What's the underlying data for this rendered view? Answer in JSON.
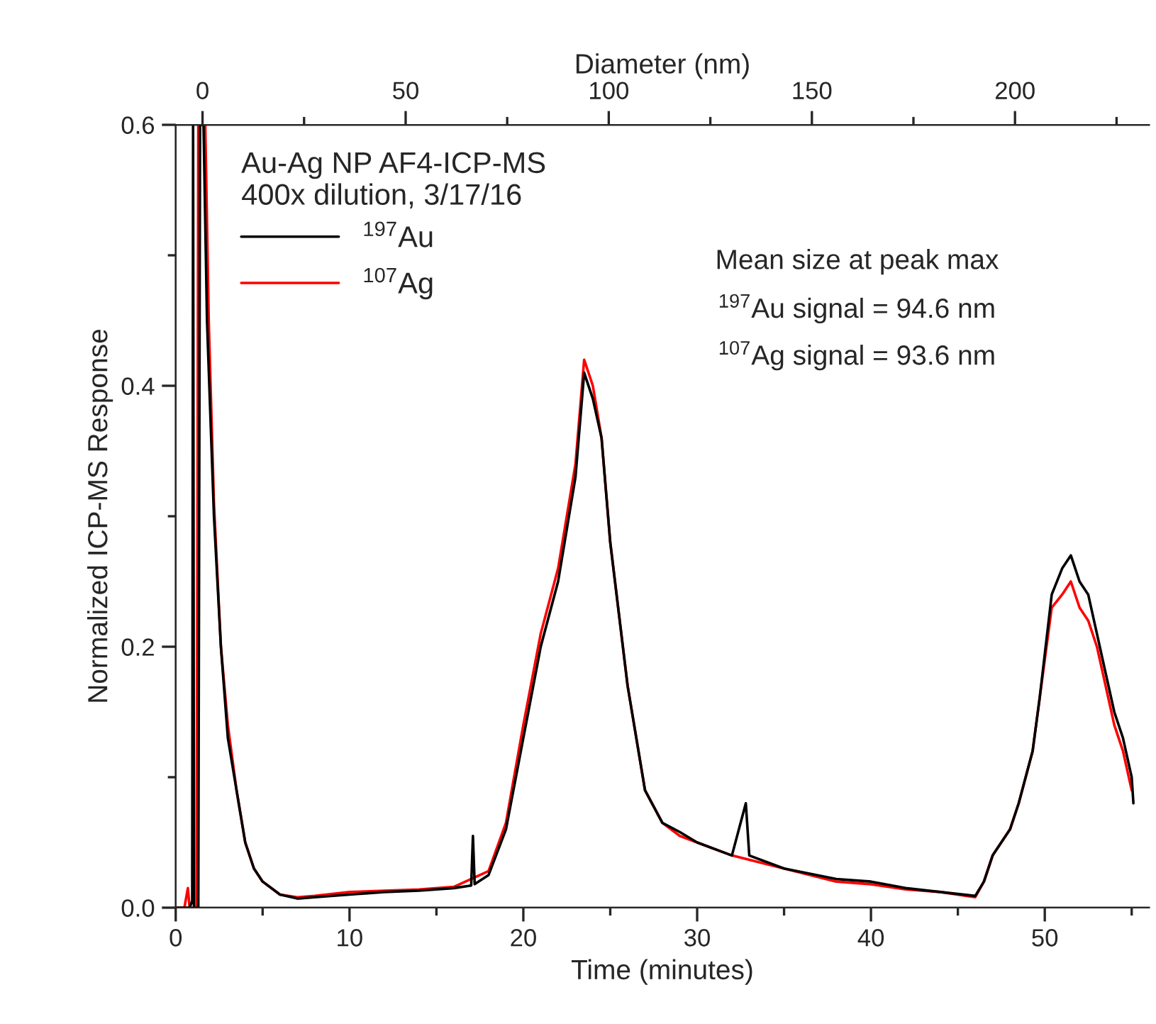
{
  "chart_data": {
    "type": "line",
    "xlabel": "Time (minutes)",
    "ylabel": "Normalized ICP-MS Response",
    "x2label": "Diameter (nm)",
    "legend_title": "Au-Ag NP AF4-ICP-MS\n400x dilution, 3/17/16",
    "annotations": [
      "Mean size at peak max",
      "$^{197}$Au signal = 94.6 nm",
      "$^{107}$Ag signal = 93.6 nm"
    ],
    "xlim": [
      0,
      56
    ],
    "ylim": [
      0,
      0.6
    ],
    "x2lim": [
      -6.6,
      233
    ],
    "xticks": [
      0,
      {
        "value": 5,
        "label": null
      },
      10,
      {
        "value": 15,
        "label": null
      },
      20,
      {
        "value": 25,
        "label": null
      },
      30,
      {
        "value": 35,
        "label": null
      },
      40,
      {
        "value": 45,
        "label": null
      },
      50,
      {
        "value": 55,
        "label": null
      }
    ],
    "yticks": [
      {
        "value": 0,
        "label": "0.0"
      },
      {
        "value": 0.1,
        "label": null
      },
      {
        "value": 0.2,
        "label": "0.2"
      },
      {
        "value": 0.3,
        "label": null
      },
      {
        "value": 0.4,
        "label": "0.4"
      },
      {
        "value": 0.5,
        "label": null
      },
      {
        "value": 0.6,
        "label": "0.6"
      }
    ],
    "x2ticks": [
      0,
      {
        "value": 25,
        "label": null
      },
      50,
      {
        "value": 75,
        "label": null
      },
      100,
      {
        "value": 125,
        "label": null
      },
      150,
      {
        "value": 175,
        "label": null
      },
      200,
      {
        "value": 225,
        "label": null
      }
    ],
    "legend": "top left",
    "grid": false,
    "marker": "none",
    "line_style": "solid",
    "series": [
      {
        "name": "$^{197}$Au",
        "color": "#000000",
        "x": [
          0,
          0.8,
          0.95,
          1.0,
          1.05,
          1.3,
          1.4,
          1.6,
          1.8,
          2.2,
          2.6,
          3.0,
          3.5,
          4.0,
          4.5,
          5,
          6,
          7,
          8,
          10,
          12,
          14,
          16,
          17,
          17.1,
          17.2,
          18,
          19,
          20,
          21,
          22,
          23,
          23.5,
          24,
          24.5,
          25,
          26,
          27,
          28,
          29,
          30,
          32,
          32.8,
          33,
          35,
          38,
          40,
          42,
          44,
          46,
          46.5,
          47,
          48,
          48.5,
          49.3,
          49.7,
          50.4,
          51,
          51.5,
          52,
          52.5,
          53,
          53.5,
          54,
          54.5,
          55,
          55.1
        ],
        "values": [
          0,
          0,
          0.005,
          0.6,
          0,
          0,
          0.6,
          0.6,
          0.45,
          0.3,
          0.2,
          0.13,
          0.09,
          0.05,
          0.03,
          0.02,
          0.01,
          0.007,
          0.008,
          0.01,
          0.012,
          0.013,
          0.015,
          0.017,
          0.055,
          0.018,
          0.025,
          0.06,
          0.13,
          0.2,
          0.25,
          0.33,
          0.41,
          0.39,
          0.36,
          0.28,
          0.17,
          0.09,
          0.065,
          0.058,
          0.05,
          0.04,
          0.08,
          0.04,
          0.03,
          0.022,
          0.02,
          0.015,
          0.012,
          0.009,
          0.02,
          0.04,
          0.06,
          0.08,
          0.12,
          0.16,
          0.24,
          0.26,
          0.27,
          0.25,
          0.24,
          0.21,
          0.18,
          0.15,
          0.13,
          0.1,
          0.08
        ]
      },
      {
        "name": "$^{107}$Ag",
        "color": "#ff0000",
        "x": [
          0,
          0.5,
          0.7,
          0.8,
          1.2,
          1.3,
          1.7,
          1.9,
          2.2,
          2.6,
          3.0,
          3.5,
          4.0,
          4.5,
          5,
          6,
          7,
          8,
          10,
          12,
          14,
          16,
          18,
          19,
          20,
          21,
          22,
          23,
          23.5,
          24,
          24.5,
          25,
          26,
          27,
          28,
          29,
          30,
          32,
          35,
          38,
          40,
          42,
          44,
          46,
          46.5,
          47,
          48,
          48.5,
          49.3,
          49.7,
          50.4,
          51,
          51.5,
          52,
          52.5,
          53,
          53.5,
          54,
          54.5,
          55
        ],
        "values": [
          0,
          0,
          0.015,
          0,
          0,
          0.6,
          0.6,
          0.45,
          0.31,
          0.2,
          0.14,
          0.09,
          0.05,
          0.03,
          0.02,
          0.01,
          0.008,
          0.009,
          0.012,
          0.013,
          0.014,
          0.016,
          0.028,
          0.065,
          0.14,
          0.21,
          0.26,
          0.34,
          0.42,
          0.4,
          0.36,
          0.28,
          0.17,
          0.09,
          0.065,
          0.055,
          0.05,
          0.04,
          0.03,
          0.02,
          0.018,
          0.014,
          0.012,
          0.008,
          0.02,
          0.04,
          0.06,
          0.08,
          0.12,
          0.16,
          0.23,
          0.24,
          0.25,
          0.23,
          0.22,
          0.2,
          0.17,
          0.14,
          0.12,
          0.09
        ]
      }
    ]
  }
}
